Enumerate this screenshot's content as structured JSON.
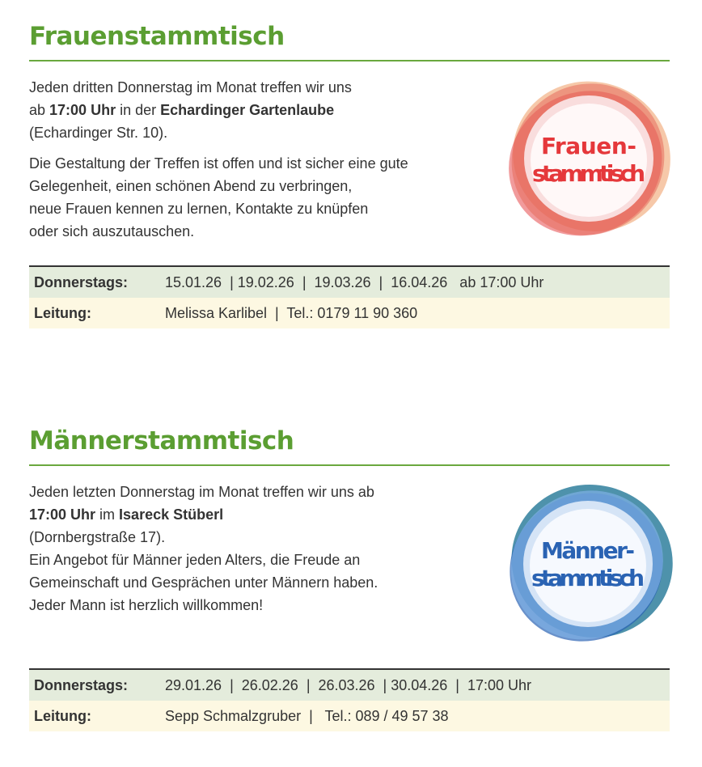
{
  "frauen": {
    "title": "Frauenstammtisch",
    "p1_a": "Jeden dritten Donnerstag im Monat treffen wir uns",
    "p1_b": "ab ",
    "p1_time": "17:00 Uhr",
    "p1_c": " in der ",
    "p1_place": "Echardinger Gartenlaube",
    "p1_addr": "(Echardinger Str. 10).",
    "p2": [
      "Die Gestaltung der Treffen ist offen und ist sicher eine gute",
      "Gelegenheit, einen schönen Abend zu verbringen,",
      "neue Frauen kennen zu lernen, Kontakte zu knüpfen",
      "oder sich auszutauschen."
    ],
    "logo_lines": [
      "Frauen-",
      "stammtisch"
    ],
    "row1_label": "Donnerstags:",
    "row1_value": "15.01.26  | 19.02.26  |  19.03.26  |  16.04.26   ab 17:00 Uhr",
    "row2_label": "Leitung:",
    "row2_value": "Melissa Karlibel  |  Tel.: 0179 11 90 360",
    "logo_color": "#e5383b"
  },
  "maenner": {
    "title": "Männerstammtisch",
    "l1": "Jeden letzten Donnerstag im Monat treffen wir uns ab",
    "l2_time": "17:00 Uhr",
    "l2_mid": " im ",
    "l2_place": "Isareck Stüberl",
    "l3": "(Dornbergstraße 17).",
    "l4": "Ein Angebot für Männer jeden Alters, die Freude an",
    "l5": "Gemeinschaft und Gesprächen unter Männern haben.",
    "l6": "Jeder Mann ist herzlich willkommen!",
    "logo_lines": [
      "Männer-",
      "stammtisch"
    ],
    "row1_label": "Donnerstags:",
    "row1_value": "29.01.26  |  26.02.26  |  26.03.26  | 30.04.26  |  17:00 Uhr",
    "row2_label": "Leitung:",
    "row2_value": "Sepp Schmalzgruber  |   Tel.: 089 / 49 57 38",
    "logo_color": "#2a63b3"
  }
}
